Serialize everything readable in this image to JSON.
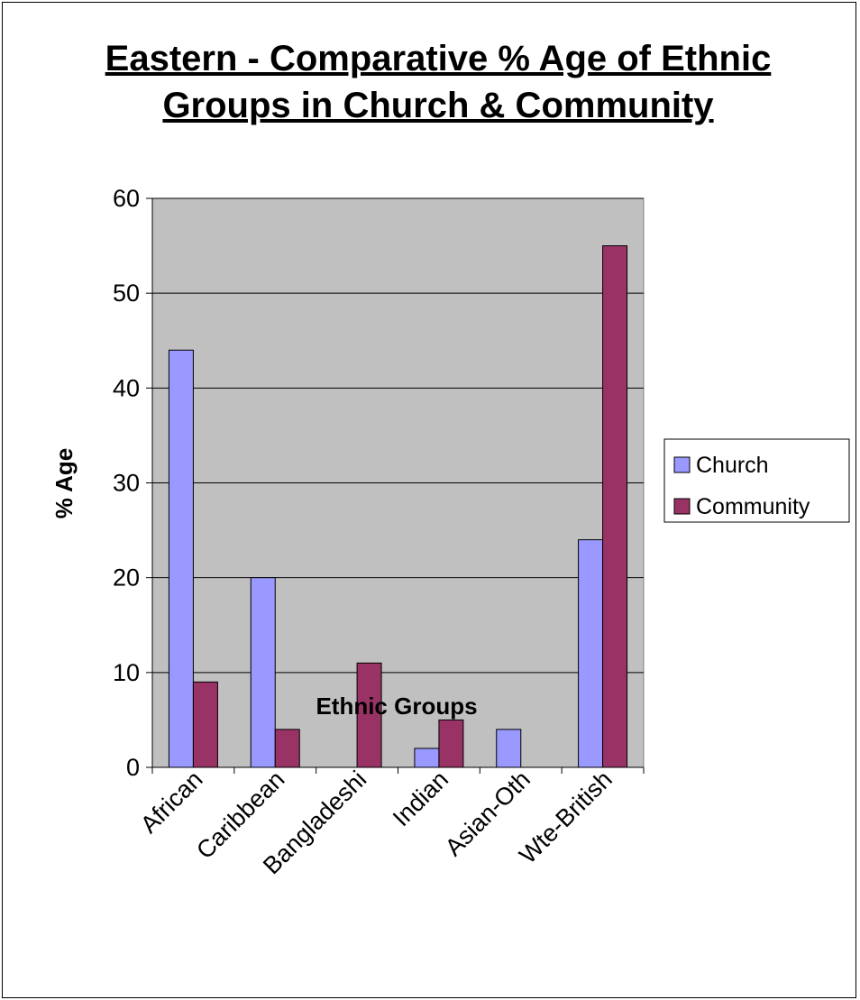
{
  "chart_data": {
    "type": "bar",
    "title": "Eastern - Comparative % Age of Ethnic Groups in Church & Community",
    "title_lines": [
      "Eastern - Comparative % Age of Ethnic",
      "Groups in Church & Community"
    ],
    "xlabel": "Ethnic Groups",
    "ylabel": "% Age",
    "categories": [
      "African",
      "Caribbean",
      "Bangladeshi",
      "Indian",
      "Asian-Oth",
      "Wte-British"
    ],
    "series": [
      {
        "name": "Church",
        "values": [
          44,
          20,
          0,
          2,
          4,
          24
        ],
        "color": "#9999ff"
      },
      {
        "name": "Community",
        "values": [
          9,
          4,
          11,
          5,
          0,
          55
        ],
        "color": "#993366"
      }
    ],
    "ylim": [
      0,
      60
    ],
    "yticks": [
      0,
      10,
      20,
      30,
      40,
      50,
      60
    ],
    "grid": true,
    "plot_background": "#c0c0c0",
    "legend_position": "right"
  }
}
